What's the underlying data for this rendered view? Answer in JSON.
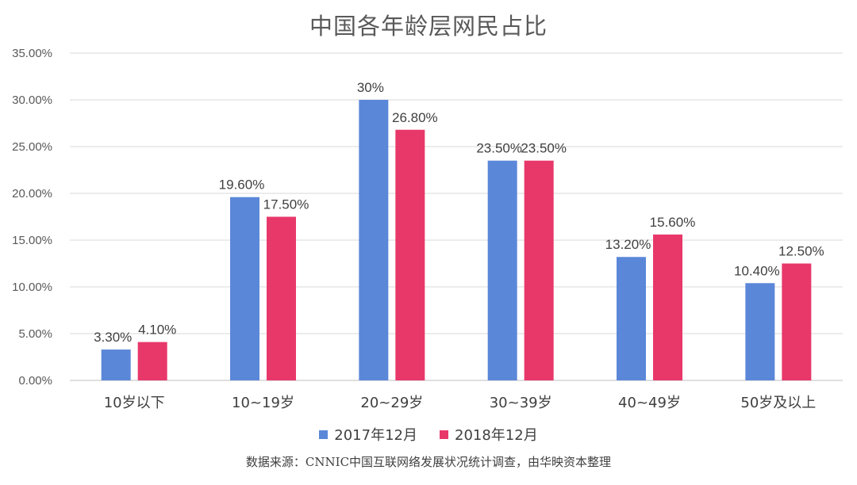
{
  "chart_data": {
    "type": "bar",
    "title": "中国各年龄层网民占比",
    "categories": [
      "10岁以下",
      "10~19岁",
      "20~29岁",
      "30~39岁",
      "40~49岁",
      "50岁及以上"
    ],
    "series": [
      {
        "name": "2017年12月",
        "color": "#5B87D9",
        "values": [
          3.3,
          19.6,
          30.0,
          23.5,
          13.2,
          10.4
        ],
        "labels": [
          "3.30%",
          "19.60%",
          "30%",
          "23.50%",
          "13.20%",
          "10.40%"
        ]
      },
      {
        "name": "2018年12月",
        "color": "#E8386A",
        "values": [
          4.1,
          17.5,
          26.8,
          23.5,
          15.6,
          12.5
        ],
        "labels": [
          "4.10%",
          "17.50%",
          "26.80%",
          "23.50%",
          "15.60%",
          "12.50%"
        ]
      }
    ],
    "y_ticks": [
      "0.00%",
      "5.00%",
      "10.00%",
      "15.00%",
      "20.00%",
      "25.00%",
      "30.00%",
      "35.00%"
    ],
    "ylim": [
      0,
      35
    ],
    "grid": true,
    "legend_position": "bottom"
  },
  "source": "数据来源：CNNIC中国互联网络发展状况统计调查，由华映资本整理"
}
